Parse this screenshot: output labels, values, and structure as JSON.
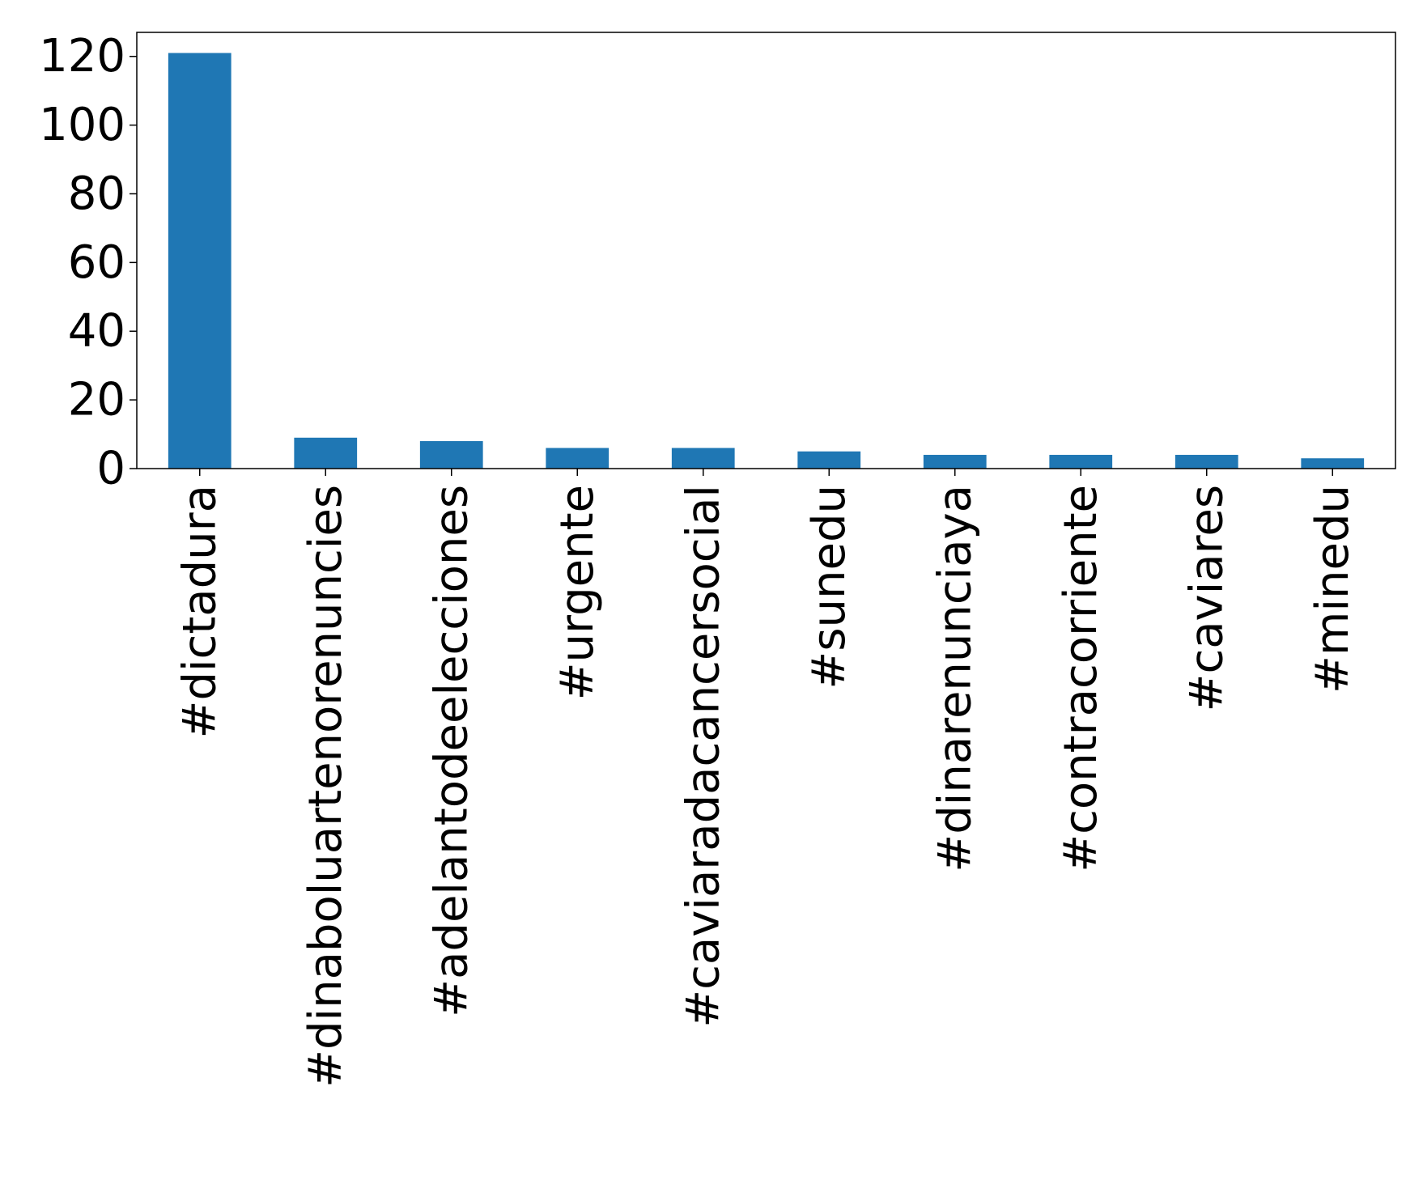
{
  "chart_data": {
    "type": "bar",
    "title": "",
    "xlabel": "",
    "ylabel": "",
    "categories": [
      "#dictadura",
      "#dinaboluartenorenuncies",
      "#adelantodeelecciones",
      "#urgente",
      "#caviaradacancersocial",
      "#sunedu",
      "#dinarenunciaya",
      "#contracorriente",
      "#caviares",
      "#minedu"
    ],
    "values": [
      121,
      9,
      8,
      6,
      6,
      5,
      4,
      4,
      4,
      3
    ],
    "ylim": [
      0,
      127
    ],
    "yticks": [
      0,
      20,
      40,
      60,
      80,
      100,
      120
    ],
    "bar_color": "#1f77b4",
    "grid": false,
    "legend": "none"
  }
}
